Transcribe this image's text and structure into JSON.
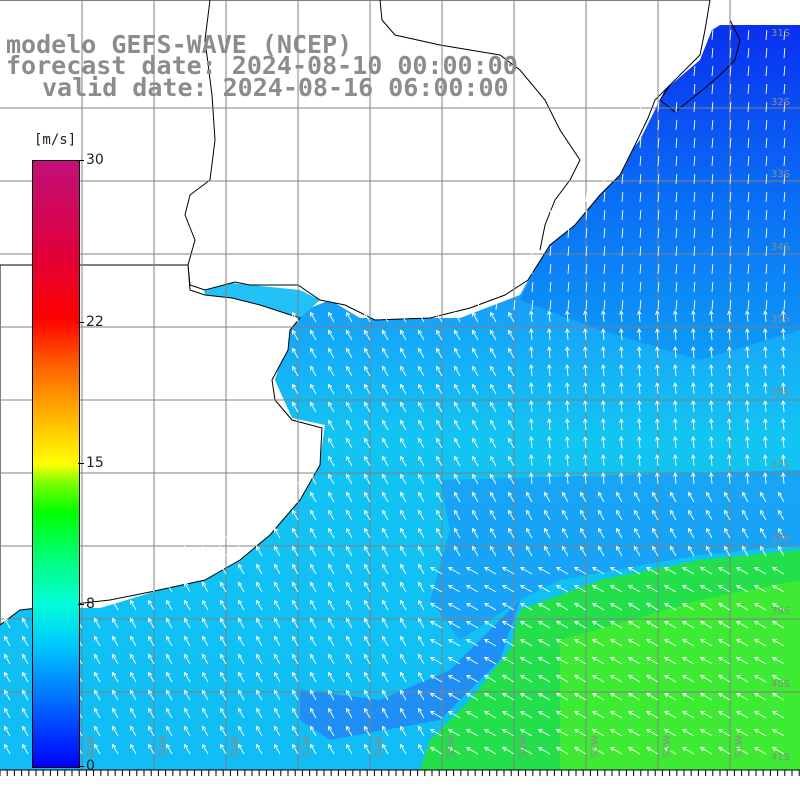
{
  "titles": {
    "line1": "modelo GEFS-WAVE (NCEP)",
    "line2": "forecast date: 2024-08-10 00:00:00",
    "line3": "valid date: 2024-08-16 06:00:00"
  },
  "colorbar": {
    "units": "[m/s]",
    "min": 0,
    "max": 30,
    "ticks": [
      "30",
      "22",
      "15",
      "8",
      "0"
    ],
    "tick_values": [
      30,
      22,
      15,
      8,
      0
    ]
  },
  "map": {
    "lat_labels": [
      "31S",
      "32S",
      "33S",
      "34S",
      "35S",
      "36S",
      "37S",
      "38S",
      "39S",
      "40S",
      "41S"
    ],
    "lon_labels": [
      "60W",
      "59W",
      "58W",
      "57W",
      "56W",
      "55W",
      "54W",
      "53W",
      "52W",
      "51W"
    ],
    "colors": {
      "land": "#ffffff",
      "coast": "#000000",
      "grid": "#808080",
      "arrow": "#ffffff"
    }
  }
}
